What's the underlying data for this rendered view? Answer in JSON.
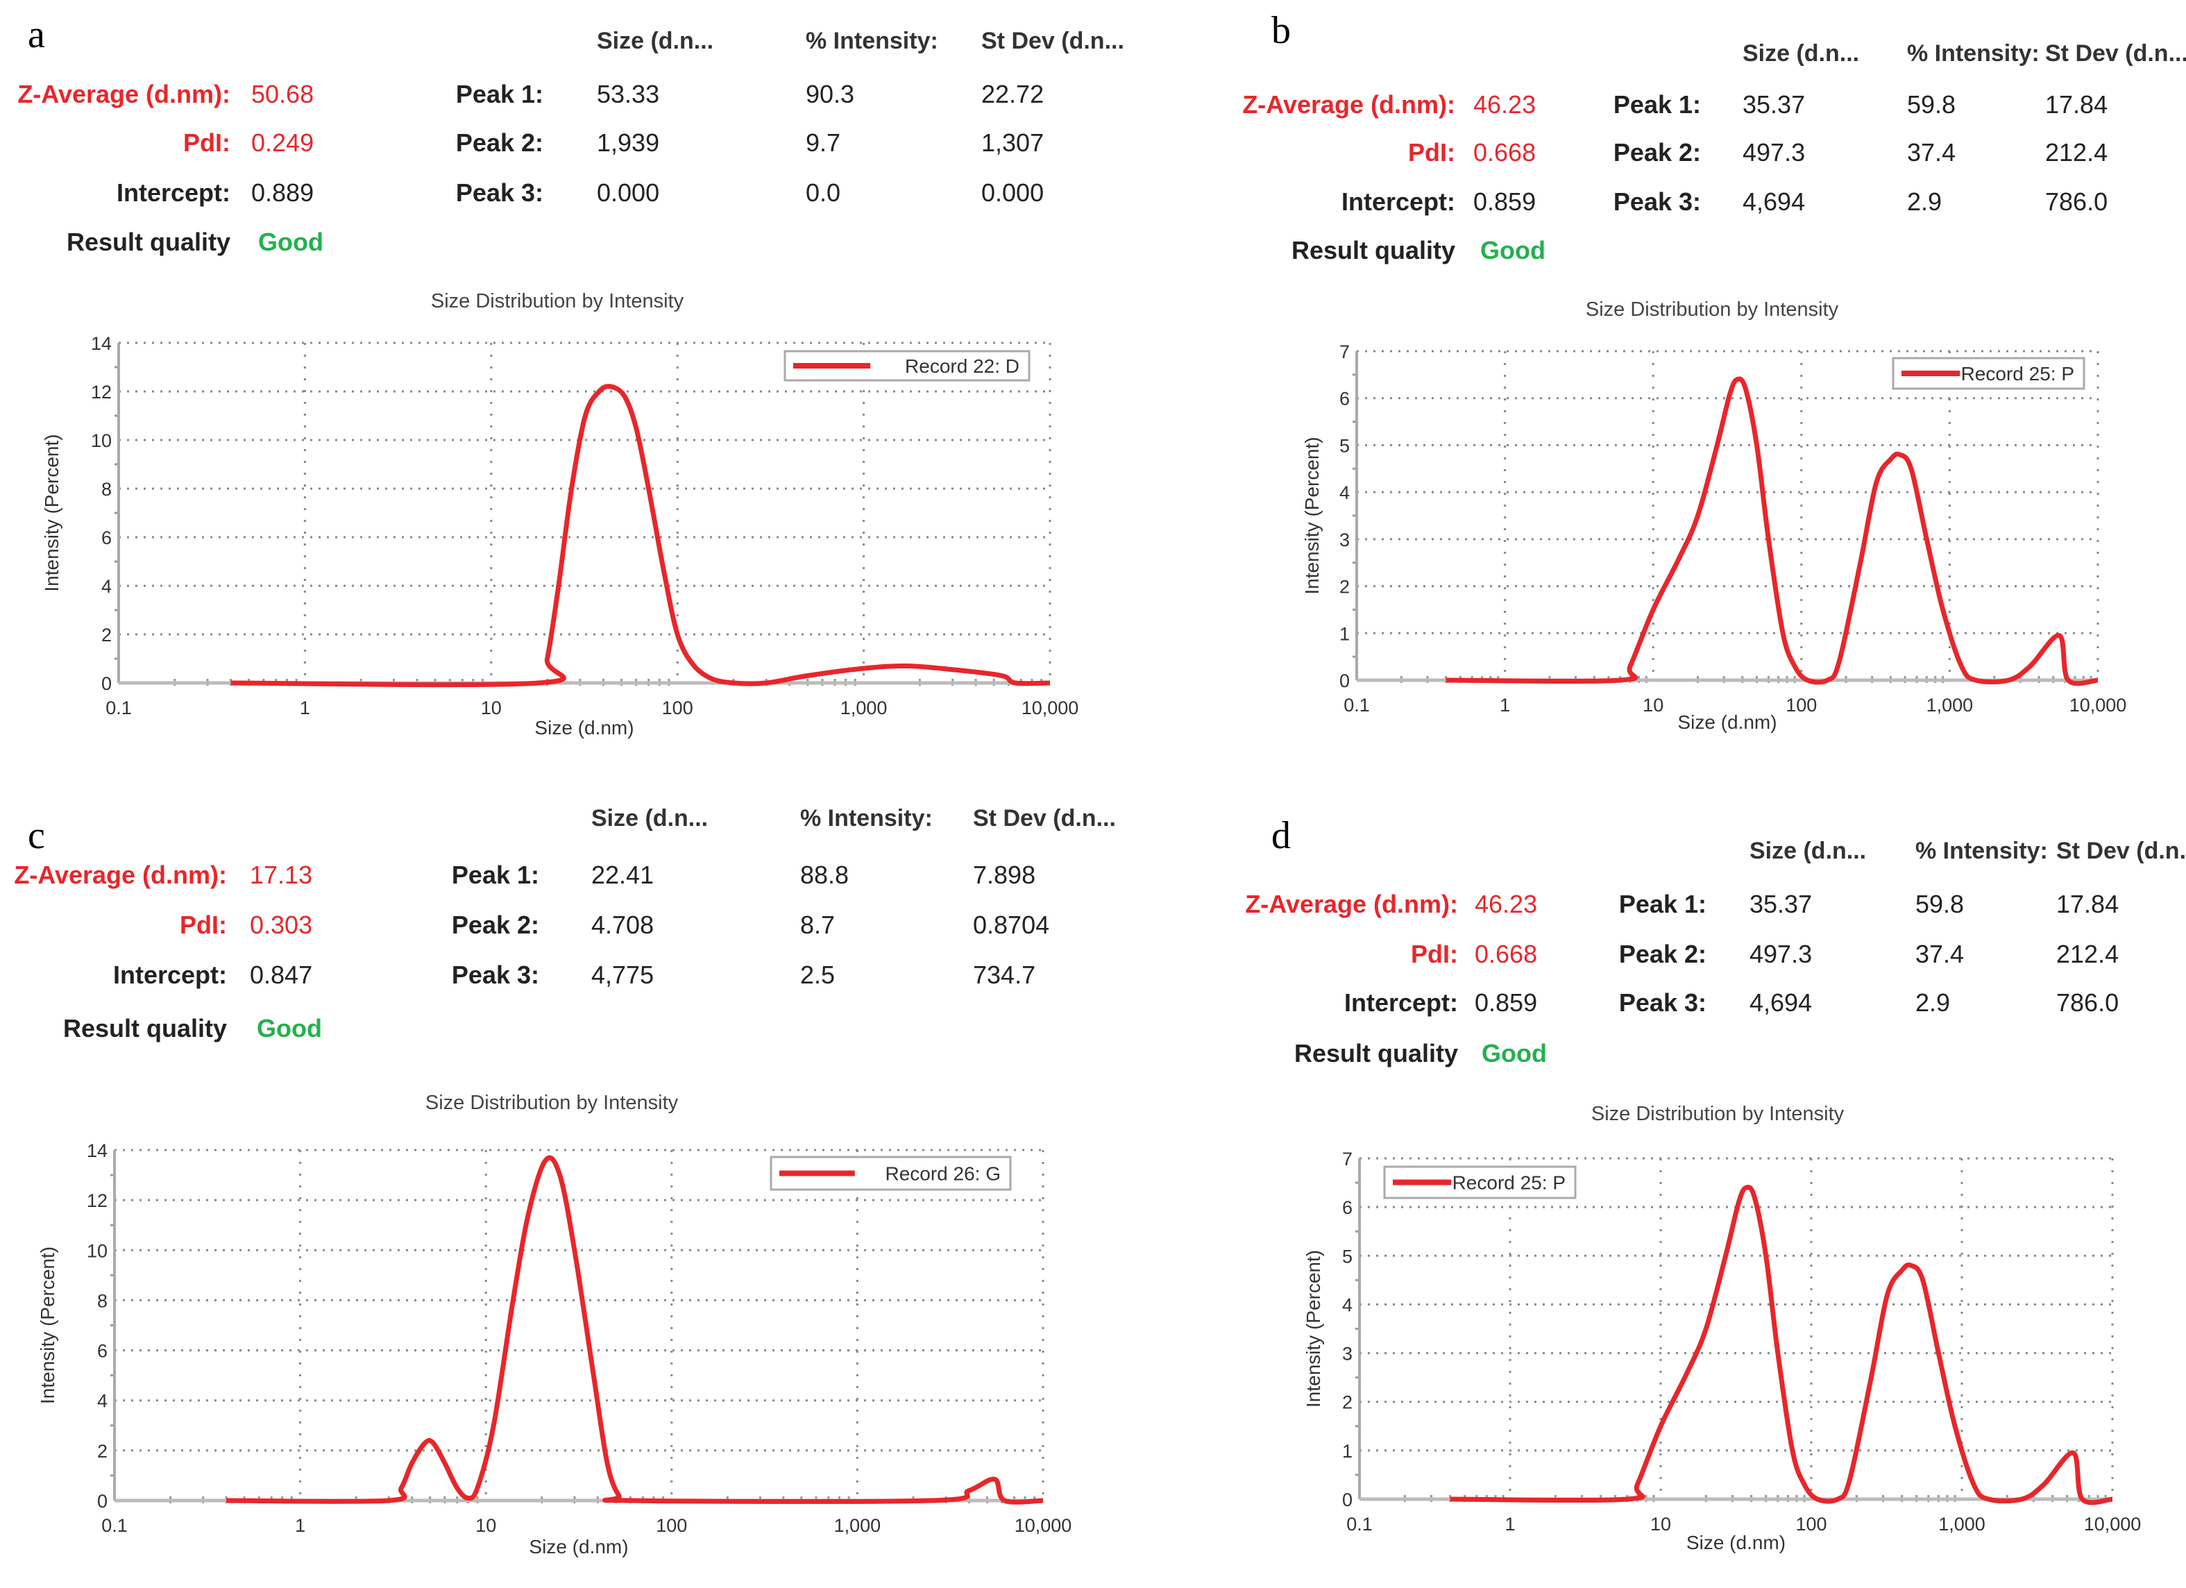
{
  "colors": {
    "curve": "#e8262a",
    "accent_red": "#e8262a",
    "good": "#22b14c",
    "grid": "#888888"
  },
  "headers": {
    "size": "Size (d.n...",
    "intensity": "% Intensity:",
    "stdev": "St Dev (d.n..."
  },
  "labels": {
    "zavg": "Z-Average (d.nm):",
    "pdi": "PdI:",
    "intercept": "Intercept:",
    "quality": "Result quality",
    "peak1": "Peak 1:",
    "peak2": "Peak 2:",
    "peak3": "Peak 3:"
  },
  "panels": [
    {
      "label": "a",
      "zavg": "50.68",
      "pdi": "0.249",
      "intercept": "0.889",
      "quality": "Good",
      "peaks": [
        [
          "53.33",
          "90.3",
          "22.72"
        ],
        [
          "1,939",
          "9.7",
          "1,307"
        ],
        [
          "0.000",
          "0.0",
          "0.000"
        ]
      ]
    },
    {
      "label": "b",
      "zavg": "46.23",
      "pdi": "0.668",
      "intercept": "0.859",
      "quality": "Good",
      "peaks": [
        [
          "35.37",
          "59.8",
          "17.84"
        ],
        [
          "497.3",
          "37.4",
          "212.4"
        ],
        [
          "4,694",
          "2.9",
          "786.0"
        ]
      ]
    },
    {
      "label": "c",
      "zavg": "17.13",
      "pdi": "0.303",
      "intercept": "0.847",
      "quality": "Good",
      "peaks": [
        [
          "22.41",
          "88.8",
          "7.898"
        ],
        [
          "4.708",
          "8.7",
          "0.8704"
        ],
        [
          "4,775",
          "2.5",
          "734.7"
        ]
      ]
    },
    {
      "label": "d",
      "zavg": "46.23",
      "pdi": "0.668",
      "intercept": "0.859",
      "quality": "Good",
      "peaks": [
        [
          "35.37",
          "59.8",
          "17.84"
        ],
        [
          "497.3",
          "37.4",
          "212.4"
        ],
        [
          "4,694",
          "2.9",
          "786.0"
        ]
      ]
    }
  ],
  "chart_data": [
    {
      "type": "line",
      "title": "Size Distribution by Intensity",
      "xlabel": "Size (d.nm)",
      "ylabel": "Intensity (Percent)",
      "xscale": "log",
      "xlim": [
        0.1,
        10000
      ],
      "ylim": [
        0,
        14
      ],
      "yticks": [
        0,
        2,
        4,
        6,
        8,
        10,
        12,
        14
      ],
      "xticks": [
        "0.1",
        "1",
        "10",
        "100",
        "1,000",
        "10,000"
      ],
      "grid": true,
      "legend_placement": "top-right",
      "series": [
        {
          "name": "Record 22: D",
          "points": [
            [
              0.4,
              0
            ],
            [
              18,
              0
            ],
            [
              20,
              1
            ],
            [
              23,
              4
            ],
            [
              27,
              8
            ],
            [
              32,
              11
            ],
            [
              38,
              12
            ],
            [
              44,
              12.2
            ],
            [
              52,
              11.8
            ],
            [
              60,
              10.5
            ],
            [
              70,
              8
            ],
            [
              85,
              4.5
            ],
            [
              100,
              2
            ],
            [
              120,
              0.8
            ],
            [
              150,
              0.2
            ],
            [
              200,
              0
            ],
            [
              300,
              0
            ],
            [
              500,
              0.3
            ],
            [
              1000,
              0.6
            ],
            [
              1700,
              0.7
            ],
            [
              3000,
              0.55
            ],
            [
              5500,
              0.3
            ],
            [
              6500,
              0
            ],
            [
              10000,
              0
            ]
          ]
        }
      ]
    },
    {
      "type": "line",
      "title": "Size Distribution by Intensity",
      "xlabel": "Size (d.nm)",
      "ylabel": "Intensity (Percent)",
      "xscale": "log",
      "xlim": [
        0.1,
        10000
      ],
      "ylim": [
        0,
        7
      ],
      "yticks": [
        0,
        1,
        2,
        3,
        4,
        5,
        6,
        7
      ],
      "xticks": [
        "0.1",
        "1",
        "10",
        "100",
        "1,000",
        "10,000"
      ],
      "grid": true,
      "legend_placement": "top-right",
      "series": [
        {
          "name": "Record 25: P",
          "points": [
            [
              0.4,
              0
            ],
            [
              6,
              0
            ],
            [
              7,
              0.3
            ],
            [
              10,
              1.5
            ],
            [
              15,
              2.6
            ],
            [
              20,
              3.5
            ],
            [
              27,
              5
            ],
            [
              33,
              6.1
            ],
            [
              37,
              6.4
            ],
            [
              42,
              6.2
            ],
            [
              50,
              5
            ],
            [
              60,
              3
            ],
            [
              75,
              1
            ],
            [
              90,
              0.3
            ],
            [
              110,
              0
            ],
            [
              150,
              0
            ],
            [
              180,
              0.4
            ],
            [
              250,
              2.5
            ],
            [
              320,
              4.2
            ],
            [
              400,
              4.7
            ],
            [
              460,
              4.8
            ],
            [
              550,
              4.5
            ],
            [
              700,
              3
            ],
            [
              900,
              1.5
            ],
            [
              1200,
              0.3
            ],
            [
              1500,
              0
            ],
            [
              2500,
              0
            ],
            [
              3500,
              0.3
            ],
            [
              5500,
              0.95
            ],
            [
              6300,
              0
            ],
            [
              10000,
              0
            ]
          ]
        }
      ]
    },
    {
      "type": "line",
      "title": "Size Distribution by Intensity",
      "xlabel": "Size (d.nm)",
      "ylabel": "Intensity (Percent)",
      "xscale": "log",
      "xlim": [
        0.1,
        10000
      ],
      "ylim": [
        0,
        14
      ],
      "yticks": [
        0,
        2,
        4,
        6,
        8,
        10,
        12,
        14
      ],
      "xticks": [
        "0.1",
        "1",
        "10",
        "100",
        "1,000",
        "10,000"
      ],
      "grid": true,
      "legend_placement": "top-right",
      "series": [
        {
          "name": "Record 26: G",
          "points": [
            [
              0.4,
              0
            ],
            [
              3,
              0
            ],
            [
              3.5,
              0.5
            ],
            [
              4,
              1.5
            ],
            [
              4.7,
              2.3
            ],
            [
              5.2,
              2.3
            ],
            [
              6,
              1.5
            ],
            [
              7,
              0.5
            ],
            [
              8,
              0.1
            ],
            [
              9,
              0.5
            ],
            [
              11,
              3
            ],
            [
              14,
              8
            ],
            [
              17,
              11.5
            ],
            [
              21,
              13.6
            ],
            [
              25,
              13
            ],
            [
              30,
              10
            ],
            [
              38,
              5
            ],
            [
              45,
              1.5
            ],
            [
              52,
              0.2
            ],
            [
              60,
              0
            ],
            [
              2500,
              0
            ],
            [
              4000,
              0.4
            ],
            [
              5500,
              0.85
            ],
            [
              6200,
              0
            ],
            [
              10000,
              0
            ]
          ]
        }
      ]
    },
    {
      "type": "line",
      "title": "Size Distribution by Intensity",
      "xlabel": "Size (d.nm)",
      "ylabel": "Intensity (Percent)",
      "xscale": "log",
      "xlim": [
        0.1,
        10000
      ],
      "ylim": [
        0,
        7
      ],
      "yticks": [
        0,
        1,
        2,
        3,
        4,
        5,
        6,
        7
      ],
      "xticks": [
        "0.1",
        "1",
        "10",
        "100",
        "1,000",
        "10,000"
      ],
      "grid": true,
      "legend_placement": "top-left",
      "series": [
        {
          "name": "Record 25: P",
          "points": [
            [
              0.4,
              0
            ],
            [
              6,
              0
            ],
            [
              7,
              0.3
            ],
            [
              10,
              1.5
            ],
            [
              15,
              2.6
            ],
            [
              20,
              3.5
            ],
            [
              27,
              5
            ],
            [
              33,
              6.1
            ],
            [
              37,
              6.4
            ],
            [
              42,
              6.2
            ],
            [
              50,
              5
            ],
            [
              60,
              3
            ],
            [
              75,
              1
            ],
            [
              90,
              0.3
            ],
            [
              110,
              0
            ],
            [
              150,
              0
            ],
            [
              180,
              0.4
            ],
            [
              250,
              2.5
            ],
            [
              320,
              4.2
            ],
            [
              400,
              4.7
            ],
            [
              460,
              4.8
            ],
            [
              550,
              4.5
            ],
            [
              700,
              3
            ],
            [
              900,
              1.5
            ],
            [
              1200,
              0.3
            ],
            [
              1500,
              0
            ],
            [
              2500,
              0
            ],
            [
              3500,
              0.3
            ],
            [
              5500,
              0.95
            ],
            [
              6300,
              0
            ],
            [
              10000,
              0
            ]
          ]
        }
      ]
    }
  ]
}
